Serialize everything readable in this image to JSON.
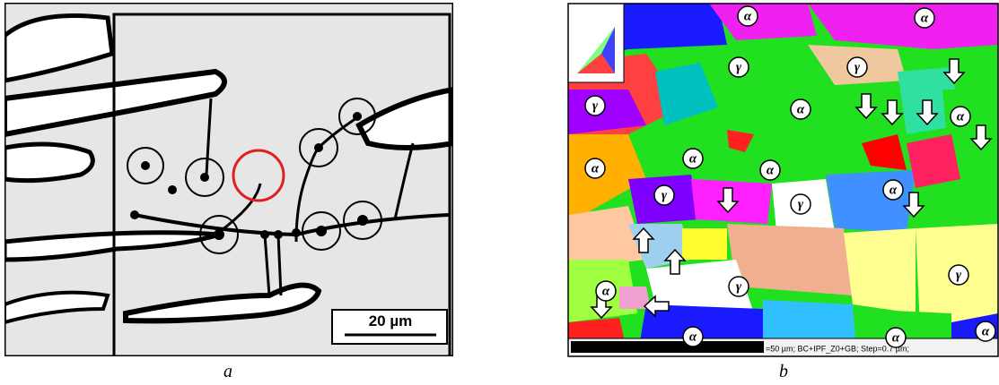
{
  "panel_a": {
    "scale_bar": "20 µm",
    "caption": "a"
  },
  "panel_b": {
    "phase_labels": [
      "α",
      "α",
      "γ",
      "γ",
      "γ",
      "α",
      "α",
      "α",
      "α",
      "α",
      "γ",
      "γ",
      "α",
      "γ",
      "γ",
      "α",
      "α",
      "α",
      "α"
    ],
    "info": "=50 µm; BC+IPF_Z0+GB; Step=0.7 µm;",
    "caption": "b"
  }
}
